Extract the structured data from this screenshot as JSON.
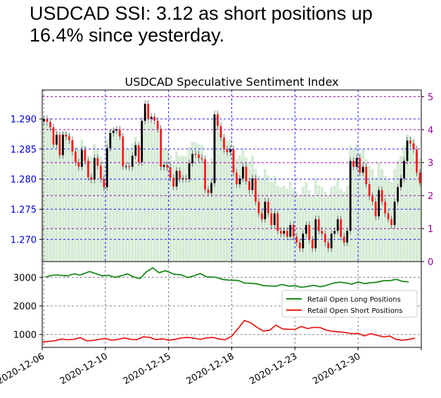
{
  "headline": "USDCAD SSI: 3.12 as short positions up 16.4% since yesterday.",
  "chart_data": [
    {
      "type": "candlestick",
      "title": "USDCAD Speculative Sentiment Index",
      "ylim": [
        1.2663,
        1.2948
      ],
      "y_ticks": [
        "1.270",
        "1.275",
        "1.280",
        "1.285",
        "1.290"
      ],
      "ssi_ylim": [
        0,
        5.2
      ],
      "ssi_ticks": [
        "0",
        "1",
        "2",
        "3",
        "4",
        "5"
      ],
      "grid": true,
      "x_range": [
        0,
        120
      ],
      "ssi_series": [
        4.22,
        4.17,
        4.08,
        3.78,
        3.95,
        3.6,
        3.95,
        3.92,
        3.86,
        3.66,
        3.48,
        3.4,
        3.69,
        3.5,
        3.22,
        3.18,
        3.55,
        3.42,
        3.19,
        3.05,
        3.72,
        3.98,
        4.02,
        4.04,
        3.92,
        3.41,
        3.41,
        3.4,
        3.59,
        3.77,
        3.48,
        4.19,
        4.48,
        4.22,
        4.26,
        4.19,
        4.05,
        3.4,
        3.43,
        3.39,
        3.21,
        3.06,
        3.33,
        3.19,
        3.2,
        3.19,
        3.46,
        3.62,
        3.61,
        3.55,
        3.53,
        3.01,
        2.95,
        3.12,
        4.3,
        4.1,
        3.9,
        3.7,
        3.65,
        3.7,
        3.3,
        3.1,
        3.2,
        3.4,
        3.15,
        3.0,
        3.2,
        2.8,
        2.6,
        2.5,
        2.8,
        2.6,
        2.4,
        2.6,
        2.3,
        2.25,
        2.3,
        2.2,
        2.4,
        2.2,
        2.1,
        2.0,
        2.25,
        2.4,
        2.15,
        2.0,
        2.5,
        2.3,
        2.25,
        2.1,
        2.0,
        2.25,
        2.3,
        2.5,
        2.2,
        2.1,
        2.3,
        3.5,
        3.4,
        3.55,
        3.3,
        3.4,
        3.1,
        2.9,
        2.8,
        2.55,
        3.0,
        2.8,
        2.6,
        2.5,
        2.4,
        2.8,
        3.05,
        3.2,
        3.5,
        3.85,
        3.8,
        3.7,
        3.3,
        3.12
      ]
    },
    {
      "type": "line",
      "ylim": [
        550,
        3550
      ],
      "y_ticks": [
        "1000",
        "2000",
        "3000"
      ],
      "x_ticks": [
        {
          "x": 0,
          "label": "2020-12-06"
        },
        {
          "x": 20,
          "label": "2020-12-10"
        },
        {
          "x": 40,
          "label": "2020-12-15"
        },
        {
          "x": 60,
          "label": "2020-12-18"
        },
        {
          "x": 80,
          "label": "2020-12-23"
        },
        {
          "x": 100,
          "label": "2020-12-30"
        },
        {
          "x": 120,
          "label": ""
        }
      ],
      "legend_position": "center-right",
      "series": [
        {
          "name": "Retail Open Long Positions",
          "color": "#1a8a1a",
          "points": [
            [
              1,
              3000
            ],
            [
              3,
              3070
            ],
            [
              5,
              3080
            ],
            [
              8,
              3050
            ],
            [
              10,
              3120
            ],
            [
              12,
              3080
            ],
            [
              15,
              3200
            ],
            [
              17,
              3130
            ],
            [
              19,
              3050
            ],
            [
              21,
              3070
            ],
            [
              23,
              3000
            ],
            [
              25,
              3050
            ],
            [
              27,
              3120
            ],
            [
              29,
              3010
            ],
            [
              31,
              2960
            ],
            [
              33,
              3190
            ],
            [
              35,
              3330
            ],
            [
              37,
              3160
            ],
            [
              39,
              3230
            ],
            [
              42,
              3100
            ],
            [
              44,
              3090
            ],
            [
              46,
              2990
            ],
            [
              48,
              3050
            ],
            [
              50,
              3130
            ],
            [
              52,
              3020
            ],
            [
              55,
              3000
            ],
            [
              57,
              2930
            ],
            [
              59,
              2900
            ],
            [
              62,
              2890
            ],
            [
              64,
              2800
            ],
            [
              66,
              2790
            ],
            [
              68,
              2770
            ],
            [
              70,
              2710
            ],
            [
              72,
              2700
            ],
            [
              74,
              2690
            ],
            [
              76,
              2750
            ],
            [
              78,
              2690
            ],
            [
              80,
              2710
            ],
            [
              82,
              2650
            ],
            [
              84,
              2680
            ],
            [
              86,
              2720
            ],
            [
              88,
              2670
            ],
            [
              90,
              2720
            ],
            [
              92,
              2790
            ],
            [
              94,
              2830
            ],
            [
              96,
              2810
            ],
            [
              98,
              2760
            ],
            [
              100,
              2840
            ],
            [
              102,
              2780
            ],
            [
              104,
              2810
            ],
            [
              106,
              2830
            ],
            [
              108,
              2880
            ],
            [
              110,
              2880
            ],
            [
              112,
              2930
            ],
            [
              114,
              2860
            ],
            [
              116,
              2840
            ]
          ]
        },
        {
          "name": "Retail Open Short Positions",
          "color": "#e8201c",
          "points": [
            [
              0,
              730
            ],
            [
              2,
              760
            ],
            [
              4,
              780
            ],
            [
              6,
              840
            ],
            [
              8,
              820
            ],
            [
              10,
              830
            ],
            [
              12,
              890
            ],
            [
              14,
              780
            ],
            [
              16,
              790
            ],
            [
              18,
              830
            ],
            [
              20,
              860
            ],
            [
              22,
              800
            ],
            [
              24,
              830
            ],
            [
              26,
              880
            ],
            [
              28,
              830
            ],
            [
              30,
              820
            ],
            [
              32,
              920
            ],
            [
              34,
              900
            ],
            [
              36,
              820
            ],
            [
              38,
              850
            ],
            [
              40,
              800
            ],
            [
              42,
              830
            ],
            [
              44,
              880
            ],
            [
              46,
              900
            ],
            [
              48,
              870
            ],
            [
              50,
              830
            ],
            [
              52,
              880
            ],
            [
              54,
              900
            ],
            [
              56,
              840
            ],
            [
              58,
              820
            ],
            [
              60,
              940
            ],
            [
              62,
              1210
            ],
            [
              64,
              1490
            ],
            [
              66,
              1410
            ],
            [
              68,
              1250
            ],
            [
              70,
              1120
            ],
            [
              72,
              1150
            ],
            [
              74,
              1330
            ],
            [
              76,
              1200
            ],
            [
              78,
              1180
            ],
            [
              80,
              1180
            ],
            [
              82,
              1280
            ],
            [
              84,
              1210
            ],
            [
              86,
              1250
            ],
            [
              88,
              1240
            ],
            [
              90,
              1150
            ],
            [
              92,
              1110
            ],
            [
              94,
              1090
            ],
            [
              96,
              1070
            ],
            [
              98,
              1030
            ],
            [
              100,
              1040
            ],
            [
              102,
              950
            ],
            [
              104,
              1030
            ],
            [
              106,
              970
            ],
            [
              108,
              920
            ],
            [
              110,
              940
            ],
            [
              112,
              830
            ],
            [
              114,
              800
            ],
            [
              116,
              830
            ],
            [
              118,
              870
            ]
          ]
        }
      ]
    }
  ]
}
